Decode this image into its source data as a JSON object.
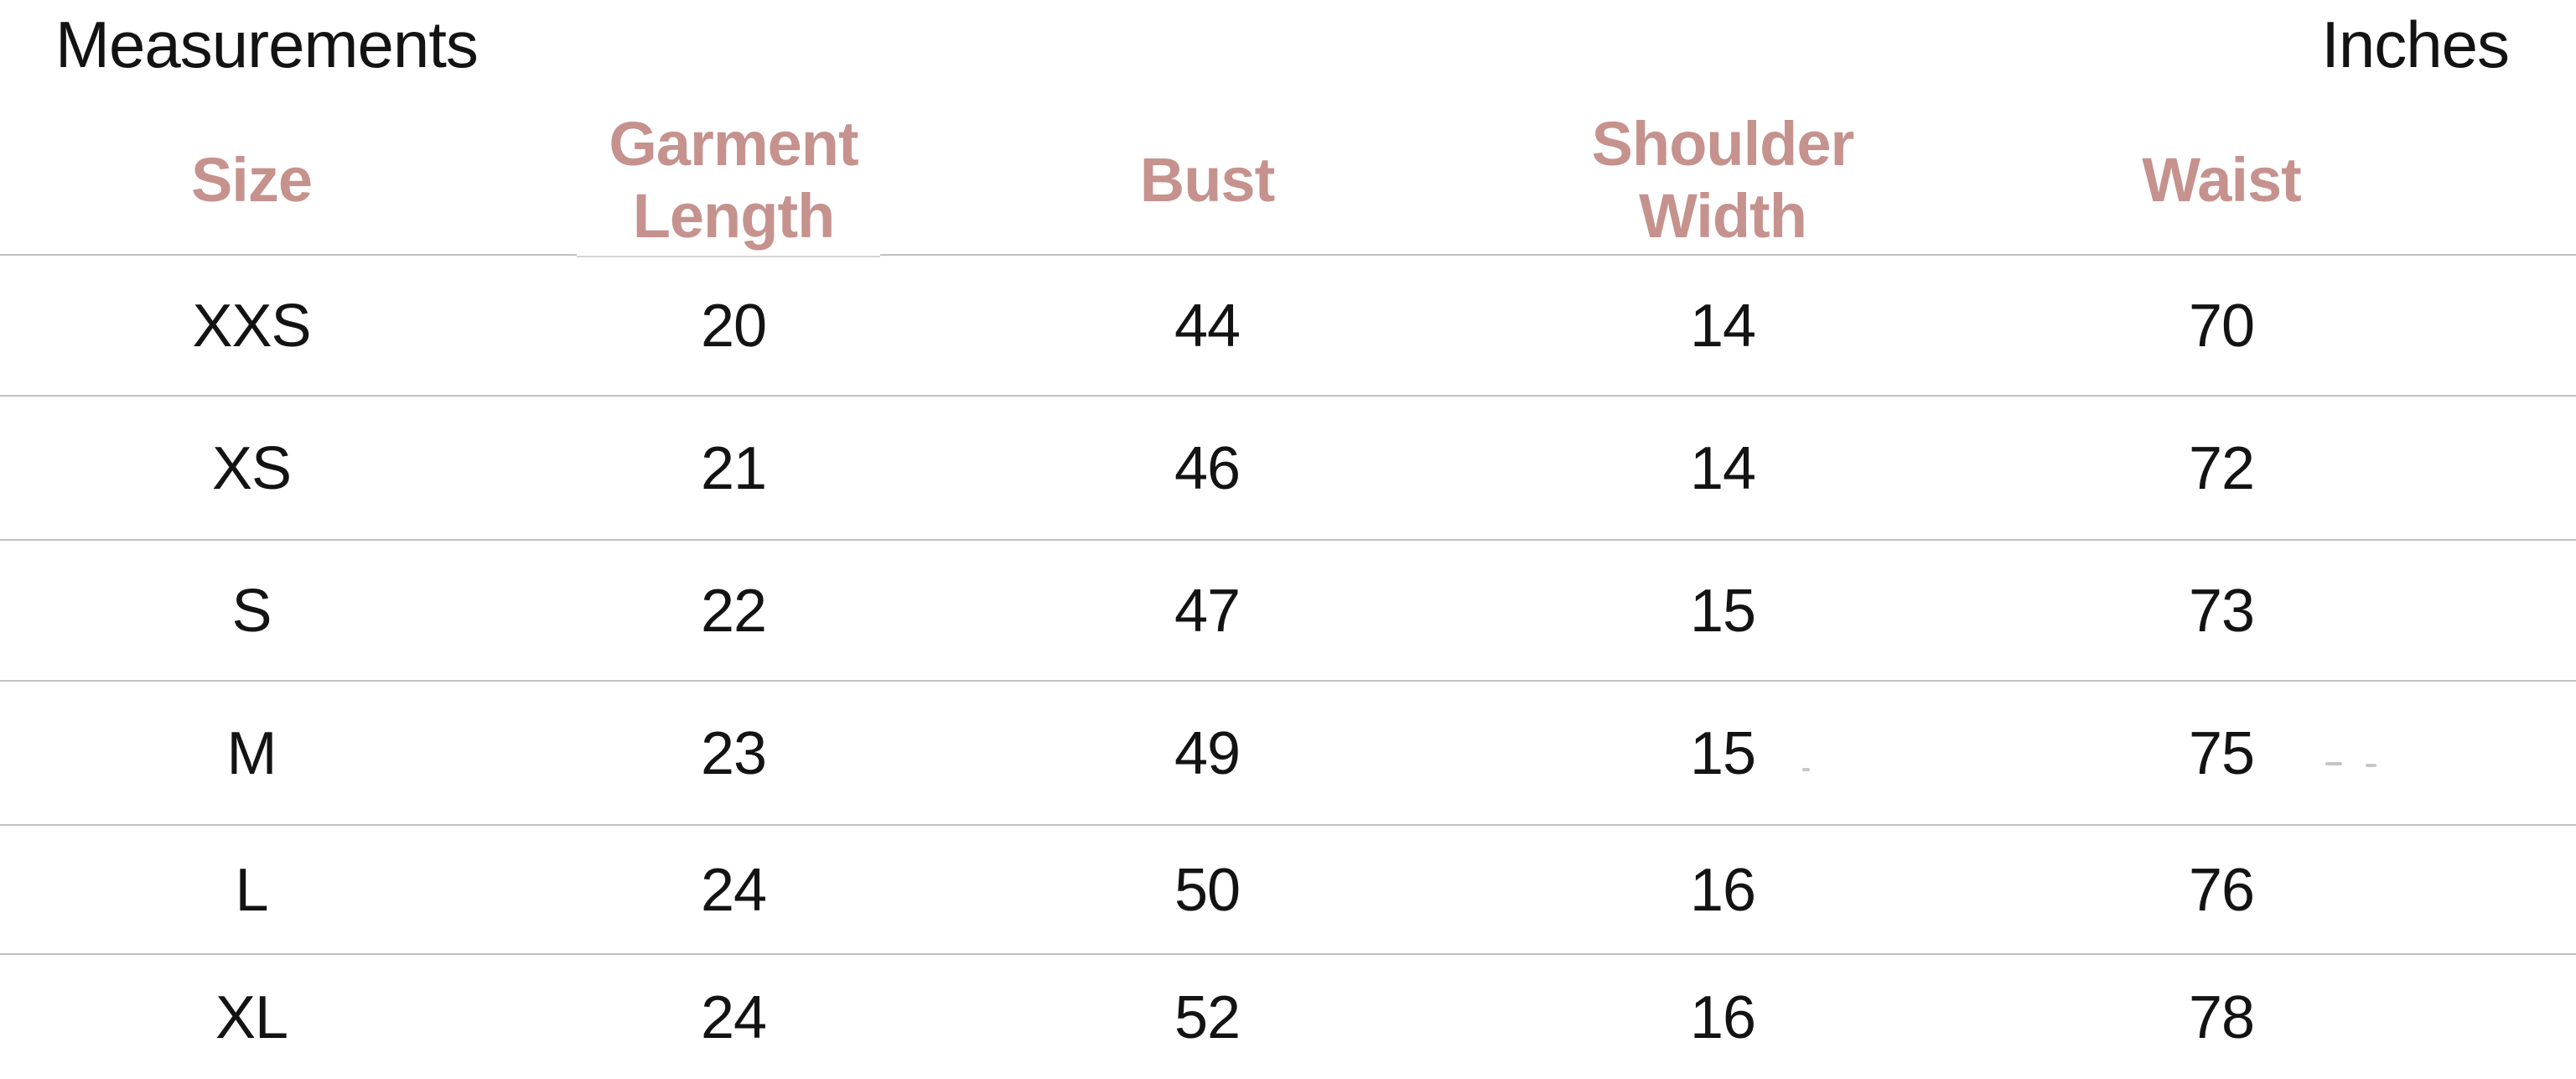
{
  "page": {
    "title": "Measurements",
    "unit_label": "Inches"
  },
  "table": {
    "columns": [
      "Size",
      "Garment Length",
      "Bust",
      "Shoulder Width",
      "Waist"
    ],
    "rows": [
      [
        "XXS",
        "20",
        "44",
        "14",
        "70"
      ],
      [
        "XS",
        "21",
        "46",
        "14",
        "72"
      ],
      [
        "S",
        "22",
        "47",
        "15",
        "73"
      ],
      [
        "M",
        "23",
        "49",
        "15",
        "75"
      ],
      [
        "L",
        "24",
        "50",
        "16",
        "76"
      ],
      [
        "XL",
        "24",
        "52",
        "16",
        "78"
      ]
    ]
  },
  "colors": {
    "header_text": "#c6928e",
    "body_text": "#131313",
    "separator": "#c1c1c1"
  }
}
